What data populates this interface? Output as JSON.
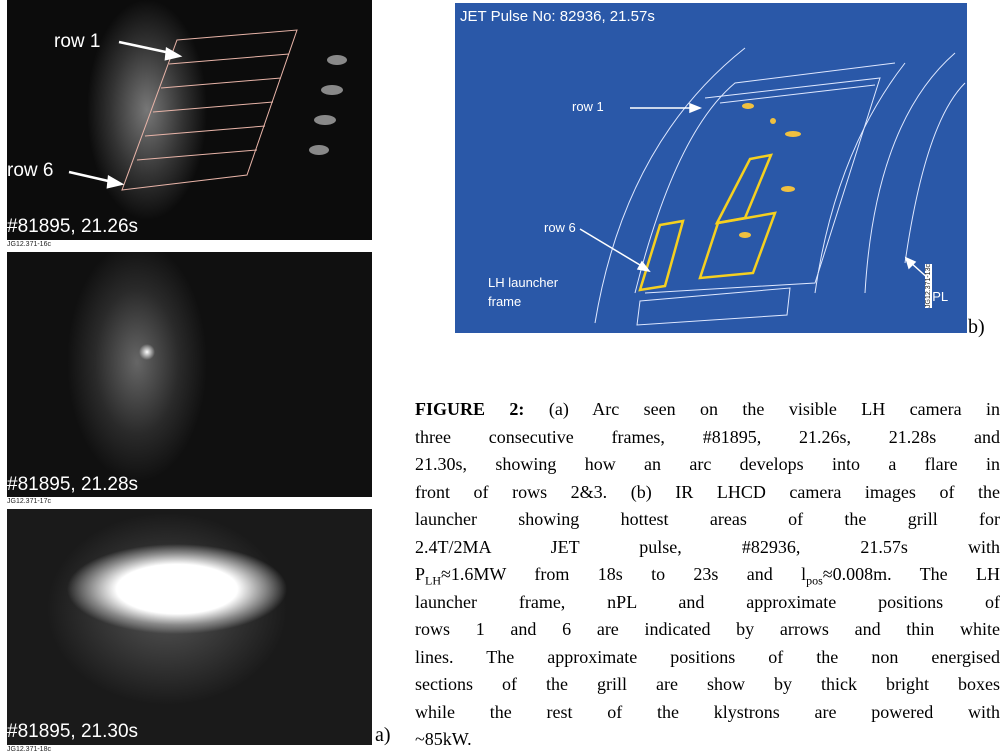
{
  "panel_a": {
    "frames": [
      {
        "row_label_top": "row 1",
        "row_label_bottom": "row 6",
        "caption": "#81895, 21.26s",
        "code": "JG12.371-16c"
      },
      {
        "caption": "#81895, 21.28s",
        "code": "JG12.371-17c"
      },
      {
        "caption": "#81895, 21.30s",
        "code": "JG12.371-18c"
      }
    ],
    "label": "a)"
  },
  "panel_b": {
    "title": "JET Pulse No: 82936, 21.57s",
    "row_label_top": "row 1",
    "row_label_bottom": "row 6",
    "frame_label": [
      "LH launcher",
      "frame"
    ],
    "npl_label": "nPL",
    "code": "JG12.371-13c",
    "label": "b)"
  },
  "caption": {
    "label": "FIGURE 2:",
    "lines": [
      " (a) Arc seen on the visible LH camera in",
      "three consecutive frames, #81895, 21.26s, 21.28s and",
      "21.30s, showing how an arc develops into a flare in",
      "front of rows 2&3. (b) IR LHCD camera images of the",
      "launcher showing hottest areas of the grill for",
      "2.4T/2MA JET pulse, #82936, 21.57s with",
      [
        "P",
        "LH",
        "≈1.6MW from 18s to 23s and l",
        "pos",
        "≈0.008m. The LH"
      ],
      "launcher frame, nPL and approximate positions of",
      "rows 1 and 6 are indicated by arrows and thin white",
      "lines. The approximate positions of the non energised",
      "sections of the grill are show by thick bright boxes",
      "while the rest of the klystrons are powered with",
      "~85kW."
    ]
  }
}
